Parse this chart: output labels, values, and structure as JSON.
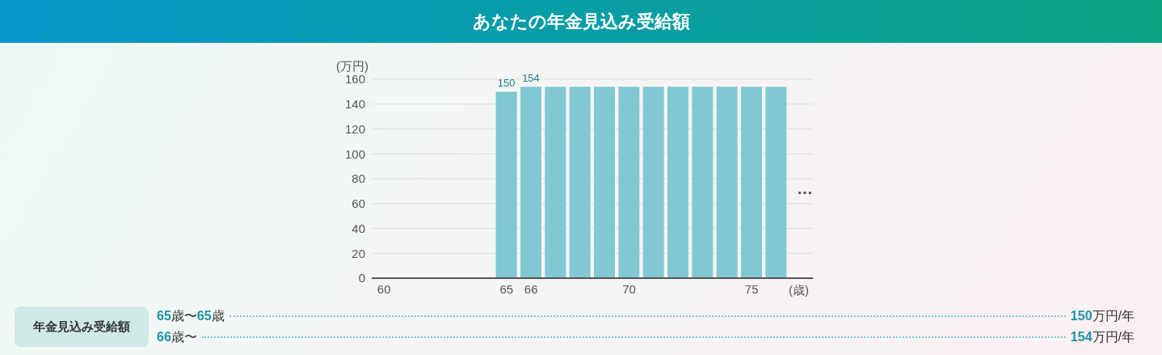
{
  "chart_data": {
    "type": "bar",
    "title": "あなたの年金見込み受給額",
    "xlabel": "(歳)",
    "ylabel": "(万円)",
    "categories": [
      "60",
      null,
      null,
      null,
      null,
      "65",
      "66",
      null,
      null,
      null,
      "70",
      null,
      null,
      null,
      null,
      "75",
      null,
      null
    ],
    "values": [
      0,
      0,
      0,
      0,
      0,
      150,
      154,
      154,
      154,
      154,
      154,
      154,
      154,
      154,
      154,
      154,
      154,
      null
    ],
    "value_labels": [
      null,
      null,
      null,
      null,
      null,
      "150",
      "154",
      null,
      null,
      null,
      null,
      null,
      null,
      null,
      null,
      null,
      null,
      null
    ],
    "color": "#81c8d3",
    "ylim": [
      0,
      160
    ],
    "yticks": [
      0,
      20,
      40,
      60,
      80,
      100,
      120,
      140,
      160
    ],
    "grid": "y",
    "annotations": [
      "…",
      "年金見込み受給額",
      "65歳〜65歳",
      "150万円/年",
      "66歳〜",
      "154万円/年"
    ]
  }
}
